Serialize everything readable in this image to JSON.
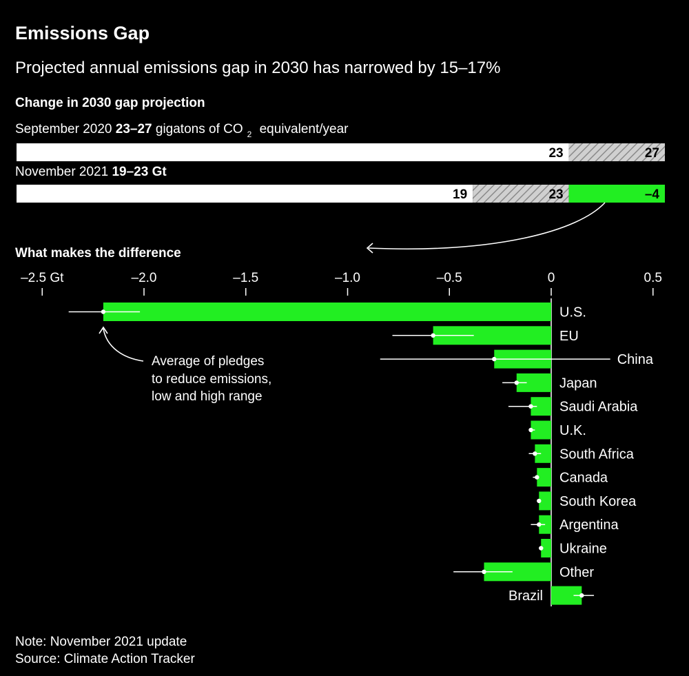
{
  "title": "Emissions Gap",
  "subtitle": "Projected annual emissions gap in 2030 has narrowed by 15–17%",
  "colors": {
    "background": "#000000",
    "accent": "#22ee22",
    "bar": "#ffffff",
    "hatch": "#9a9a9a"
  },
  "gap_section": {
    "heading": "Change in 2030 gap projection",
    "sept_prefix": "September 2020 ",
    "sept_range": "23–27",
    "sept_suffix": " gigatons of CO",
    "sept_sub": "2",
    "sept_tail": " equivalent/year",
    "nov_prefix": "November 2021 ",
    "nov_range": "19–23 Gt"
  },
  "gap_bars": [
    {
      "row": "September 2020",
      "low": 23,
      "high": 27,
      "low_label": "23",
      "high_label": "27"
    },
    {
      "row": "November 2021",
      "low": 19,
      "high": 23,
      "change": -4,
      "low_label": "19",
      "high_label": "23",
      "change_label": "–4"
    }
  ],
  "annotation": [
    "Average of pledges",
    "to reduce emissions,",
    "low and high range"
  ],
  "note": "Note: November 2021 update",
  "source": "Source: Climate Action Tracker",
  "chart_data": {
    "type": "bar",
    "orientation": "horizontal",
    "title": "What makes the difference",
    "xlim": [
      -2.5,
      0.5
    ],
    "xticks": [
      -2.5,
      -2.0,
      -1.5,
      -1.0,
      -0.5,
      0,
      0.5
    ],
    "xtick_labels": [
      "–2.5 Gt",
      "–2.0",
      "–1.5",
      "–1.0",
      "–0.5",
      "0",
      "0.5"
    ],
    "categories": [
      "U.S.",
      "EU",
      "China",
      "Japan",
      "Saudi Arabia",
      "U.K.",
      "South Africa",
      "Canada",
      "South Korea",
      "Argentina",
      "Ukraine",
      "Other",
      "Brazil"
    ],
    "values": [
      -2.2,
      -0.58,
      -0.28,
      -0.17,
      -0.1,
      -0.1,
      -0.08,
      -0.07,
      -0.06,
      -0.06,
      -0.05,
      -0.33,
      0.15
    ],
    "low": [
      -2.37,
      -0.78,
      -0.84,
      -0.24,
      -0.21,
      -0.11,
      -0.11,
      -0.09,
      -0.07,
      -0.1,
      -0.06,
      -0.48,
      0.11
    ],
    "high": [
      -2.02,
      -0.38,
      0.29,
      -0.12,
      -0.07,
      -0.08,
      -0.05,
      -0.06,
      -0.05,
      -0.03,
      -0.04,
      -0.19,
      0.21
    ]
  }
}
